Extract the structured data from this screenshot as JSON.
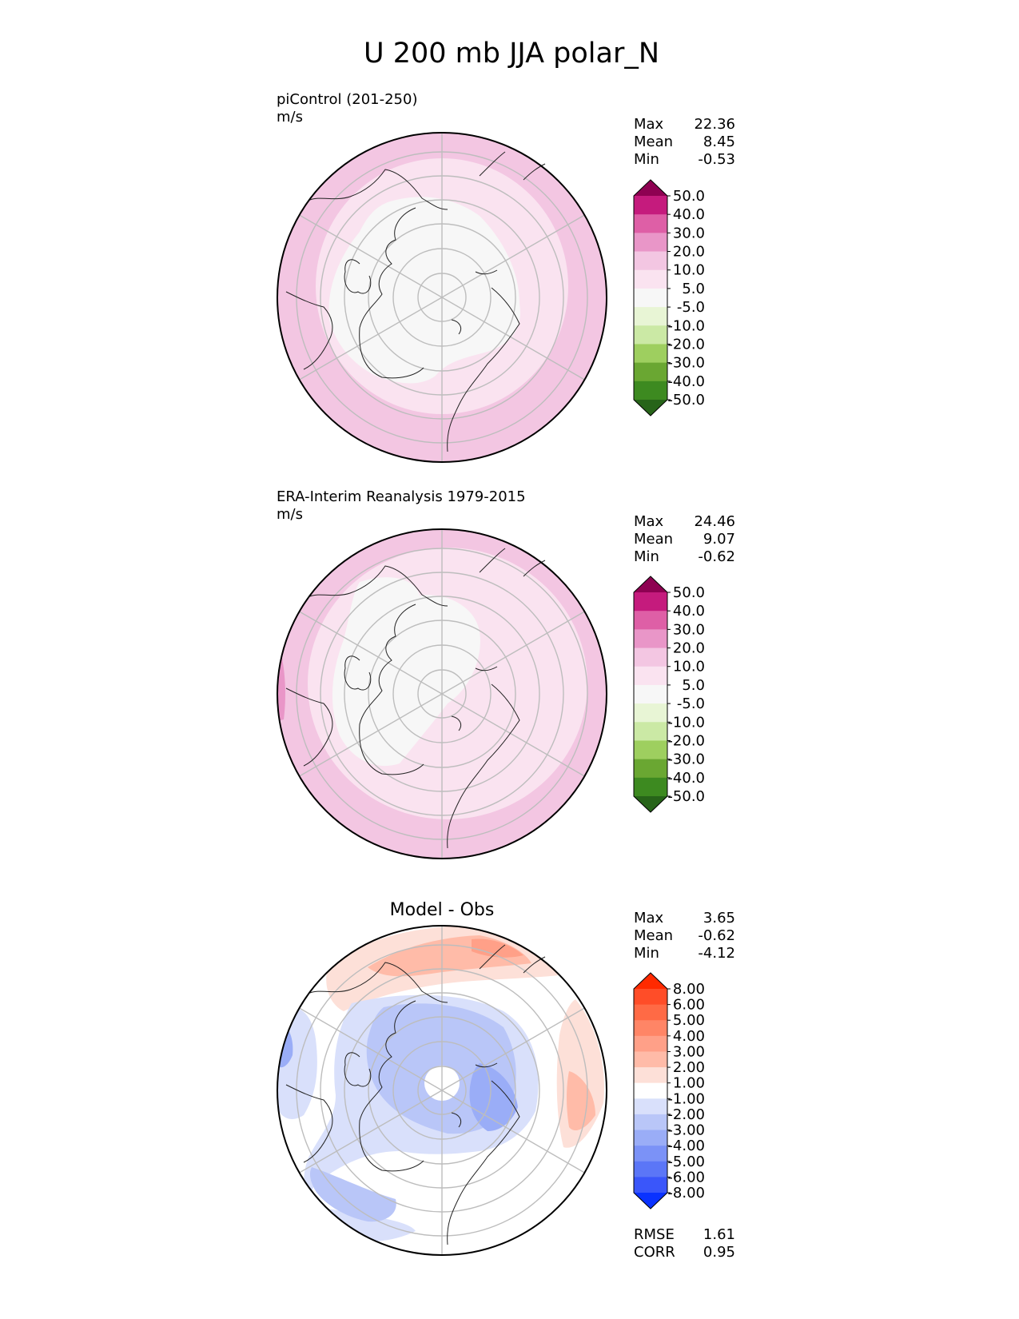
{
  "figure": {
    "title": "U 200 mb JJA polar_N"
  },
  "chart_data": [
    {
      "type": "heatmap",
      "projection": "polar",
      "title": "piControl (201-250)",
      "units": "m/s",
      "stats": [
        {
          "label": "Max",
          "value": "22.36"
        },
        {
          "label": "Mean",
          "value": "8.45"
        },
        {
          "label": "Min",
          "value": "-0.53"
        }
      ],
      "colorbar": {
        "levels": [
          "50.0",
          "40.0",
          "30.0",
          "20.0",
          "10.0",
          "5.0",
          "-5.0",
          "-10.0",
          "-20.0",
          "-30.0",
          "-40.0",
          "-50.0"
        ],
        "colors": [
          "#8e0152",
          "#c51b7d",
          "#de5fa6",
          "#e996c8",
          "#f3c6e2",
          "#fae3f0",
          "#f7f7f7",
          "#e8f5d5",
          "#cbe9a5",
          "#9ecf5f",
          "#6aa732",
          "#3d8a20",
          "#276419"
        ]
      }
    },
    {
      "type": "heatmap",
      "projection": "polar",
      "title": "ERA-Interim Reanalysis 1979-2015",
      "units": "m/s",
      "stats": [
        {
          "label": "Max",
          "value": "24.46"
        },
        {
          "label": "Mean",
          "value": "9.07"
        },
        {
          "label": "Min",
          "value": "-0.62"
        }
      ],
      "colorbar": {
        "levels": [
          "50.0",
          "40.0",
          "30.0",
          "20.0",
          "10.0",
          "5.0",
          "-5.0",
          "-10.0",
          "-20.0",
          "-30.0",
          "-40.0",
          "-50.0"
        ],
        "colors": [
          "#8e0152",
          "#c51b7d",
          "#de5fa6",
          "#e996c8",
          "#f3c6e2",
          "#fae3f0",
          "#f7f7f7",
          "#e8f5d5",
          "#cbe9a5",
          "#9ecf5f",
          "#6aa732",
          "#3d8a20",
          "#276419"
        ]
      }
    },
    {
      "type": "heatmap",
      "projection": "polar",
      "title": "Model - Obs",
      "units": "",
      "stats": [
        {
          "label": "Max",
          "value": "3.65"
        },
        {
          "label": "Mean",
          "value": "-0.62"
        },
        {
          "label": "Min",
          "value": "-4.12"
        }
      ],
      "colorbar": {
        "levels": [
          "8.00",
          "6.00",
          "5.00",
          "4.00",
          "3.00",
          "2.00",
          "1.00",
          "-1.00",
          "-2.00",
          "-3.00",
          "-4.00",
          "-5.00",
          "-6.00",
          "-8.00"
        ],
        "colors": [
          "#ff2a00",
          "#ff4d28",
          "#ff6a45",
          "#ff8566",
          "#ffa088",
          "#ffbba8",
          "#fde0d8",
          "#ffffff",
          "#d9e0fb",
          "#b9c6f8",
          "#9aadf7",
          "#7b92f7",
          "#5b76f7",
          "#3a56fa",
          "#0a32ff"
        ]
      },
      "metrics": [
        {
          "label": "RMSE",
          "value": "1.61"
        },
        {
          "label": "CORR",
          "value": "0.95"
        }
      ]
    }
  ]
}
